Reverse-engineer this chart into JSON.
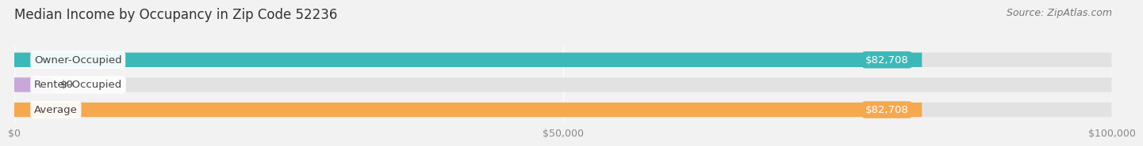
{
  "title": "Median Income by Occupancy in Zip Code 52236",
  "source": "Source: ZipAtlas.com",
  "categories": [
    "Owner-Occupied",
    "Renter-Occupied",
    "Average"
  ],
  "values": [
    82708,
    0,
    82708
  ],
  "bar_colors": [
    "#3db8b8",
    "#c8a8d8",
    "#f5a84e"
  ],
  "bar_labels": [
    "$82,708",
    "$0",
    "$82,708"
  ],
  "xlim": [
    0,
    100000
  ],
  "xticks": [
    0,
    50000,
    100000
  ],
  "xtick_labels": [
    "$0",
    "$50,000",
    "$100,000"
  ],
  "background_color": "#f2f2f2",
  "bar_bg_color": "#e2e2e2",
  "title_fontsize": 12,
  "source_fontsize": 9,
  "label_fontsize": 9.5,
  "tick_fontsize": 9,
  "value_label_color": "#ffffff",
  "cat_label_color": "#444444",
  "tick_color": "#888888"
}
